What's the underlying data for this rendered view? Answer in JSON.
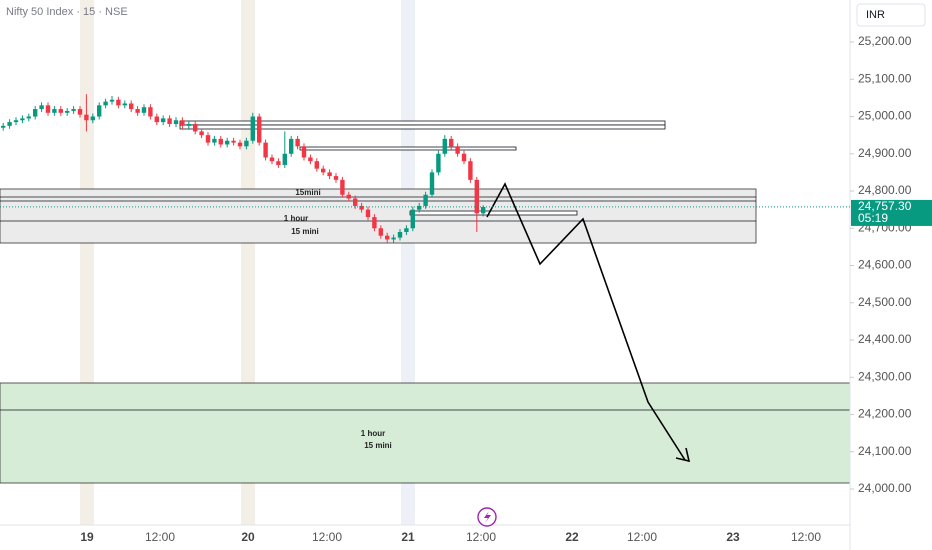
{
  "chart_data": {
    "type": "candlestick",
    "title": "Nifty 50 Index · 15 · NSE",
    "currency": "INR",
    "up_color": "#089981",
    "down_color": "#f23645",
    "open": [
      24970,
      24975,
      24985,
      24990,
      24995,
      25000,
      25020,
      25030,
      25010,
      25020,
      25010,
      25015,
      25020,
      25005,
      24990,
      25000,
      25030,
      25040,
      25045,
      25030,
      25035,
      25020,
      25010,
      25025,
      25000,
      24985,
      24995,
      24980,
      24990,
      24975,
      24980,
      24960,
      24950,
      24930,
      24940,
      24925,
      24935,
      24930,
      24920,
      24935,
      25000,
      24930,
      24890,
      24880,
      24870,
      24900,
      24940,
      24920,
      24890,
      24880,
      24860,
      24850,
      24840,
      24830,
      24790,
      24780,
      24760,
      24750,
      24730,
      24700,
      24680,
      24670,
      24675,
      24690,
      24700,
      24750,
      24760,
      24790,
      24850,
      24900,
      24940,
      24920,
      24900,
      24880,
      24830,
      24740
    ],
    "high": [
      24983,
      24993,
      24998,
      25003,
      25008,
      25028,
      25038,
      25038,
      25028,
      25028,
      25023,
      25028,
      25028,
      25060,
      25008,
      25038,
      25048,
      25055,
      25053,
      25043,
      25043,
      25028,
      25033,
      25033,
      25008,
      25003,
      25003,
      24998,
      24998,
      24988,
      24988,
      24968,
      24958,
      24948,
      24948,
      24943,
      24943,
      24938,
      24943,
      25010,
      25008,
      24938,
      24898,
      24888,
      24960,
      24948,
      24948,
      24928,
      24898,
      24888,
      24868,
      24858,
      24848,
      24838,
      24798,
      24788,
      24768,
      24758,
      24738,
      24708,
      24688,
      24683,
      24698,
      24708,
      24758,
      24768,
      24798,
      24858,
      24908,
      24950,
      24948,
      24928,
      24908,
      24888,
      24838,
      24762
    ],
    "low": [
      24962,
      24967,
      24977,
      24982,
      24987,
      24992,
      25012,
      25002,
      25002,
      25002,
      25002,
      25007,
      24997,
      24960,
      24982,
      24992,
      25022,
      25032,
      25022,
      25022,
      25012,
      25002,
      25002,
      24992,
      24977,
      24977,
      24972,
      24972,
      24967,
      24967,
      24952,
      24942,
      24922,
      24922,
      24917,
      24917,
      24922,
      24912,
      24912,
      24927,
      24922,
      24882,
      24872,
      24862,
      24862,
      24892,
      24912,
      24882,
      24872,
      24852,
      24842,
      24832,
      24822,
      24782,
      24772,
      24752,
      24742,
      24722,
      24692,
      24672,
      24662,
      24662,
      24667,
      24682,
      24692,
      24742,
      24752,
      24782,
      24842,
      24892,
      24912,
      24892,
      24872,
      24822,
      24690,
      24732
    ],
    "close": [
      24975,
      24985,
      24990,
      24995,
      25000,
      25020,
      25030,
      25010,
      25020,
      25010,
      25015,
      25020,
      25005,
      24990,
      25000,
      25030,
      25040,
      25045,
      25030,
      25035,
      25020,
      25010,
      25025,
      25000,
      24985,
      24995,
      24980,
      24990,
      24975,
      24980,
      24960,
      24950,
      24930,
      24940,
      24925,
      24935,
      24930,
      24920,
      24935,
      25000,
      24930,
      24890,
      24880,
      24870,
      24900,
      24940,
      24920,
      24890,
      24880,
      24860,
      24850,
      24840,
      24830,
      24790,
      24780,
      24760,
      24750,
      24730,
      24700,
      24680,
      24670,
      24675,
      24690,
      24700,
      24750,
      24760,
      24790,
      24850,
      24900,
      24940,
      24920,
      24900,
      24880,
      24830,
      24740,
      24757
    ],
    "ylim": [
      23903.4,
      25312.8
    ],
    "yticks": [
      {
        "value": 25200,
        "label": "25,200.00"
      },
      {
        "value": 25100,
        "label": "25,100.00"
      },
      {
        "value": 25000,
        "label": "25,000.00"
      },
      {
        "value": 24900,
        "label": "24,900.00"
      },
      {
        "value": 24800,
        "label": "24,800.00"
      },
      {
        "value": 24700,
        "label": "24,700.00"
      },
      {
        "value": 24600,
        "label": "24,600.00"
      },
      {
        "value": 24500,
        "label": "24,500.00"
      },
      {
        "value": 24400,
        "label": "24,400.00"
      },
      {
        "value": 24300,
        "label": "24,300.00"
      },
      {
        "value": 24200,
        "label": "24,200.00"
      },
      {
        "value": 24100,
        "label": "24,100.00"
      },
      {
        "value": 24000,
        "label": "24,000.00"
      }
    ],
    "x_labels": [
      "19",
      "12:00",
      "20",
      "12:00",
      "21",
      "12:00",
      "22",
      "12:00",
      "23",
      "12:00"
    ],
    "last_price": {
      "value": 24757.3,
      "label": "24,757.30"
    },
    "countdown": "05:19",
    "zone_labels": [
      "15mini",
      "1 hour",
      "15 mini",
      "1 hour",
      "15 mini"
    ]
  }
}
